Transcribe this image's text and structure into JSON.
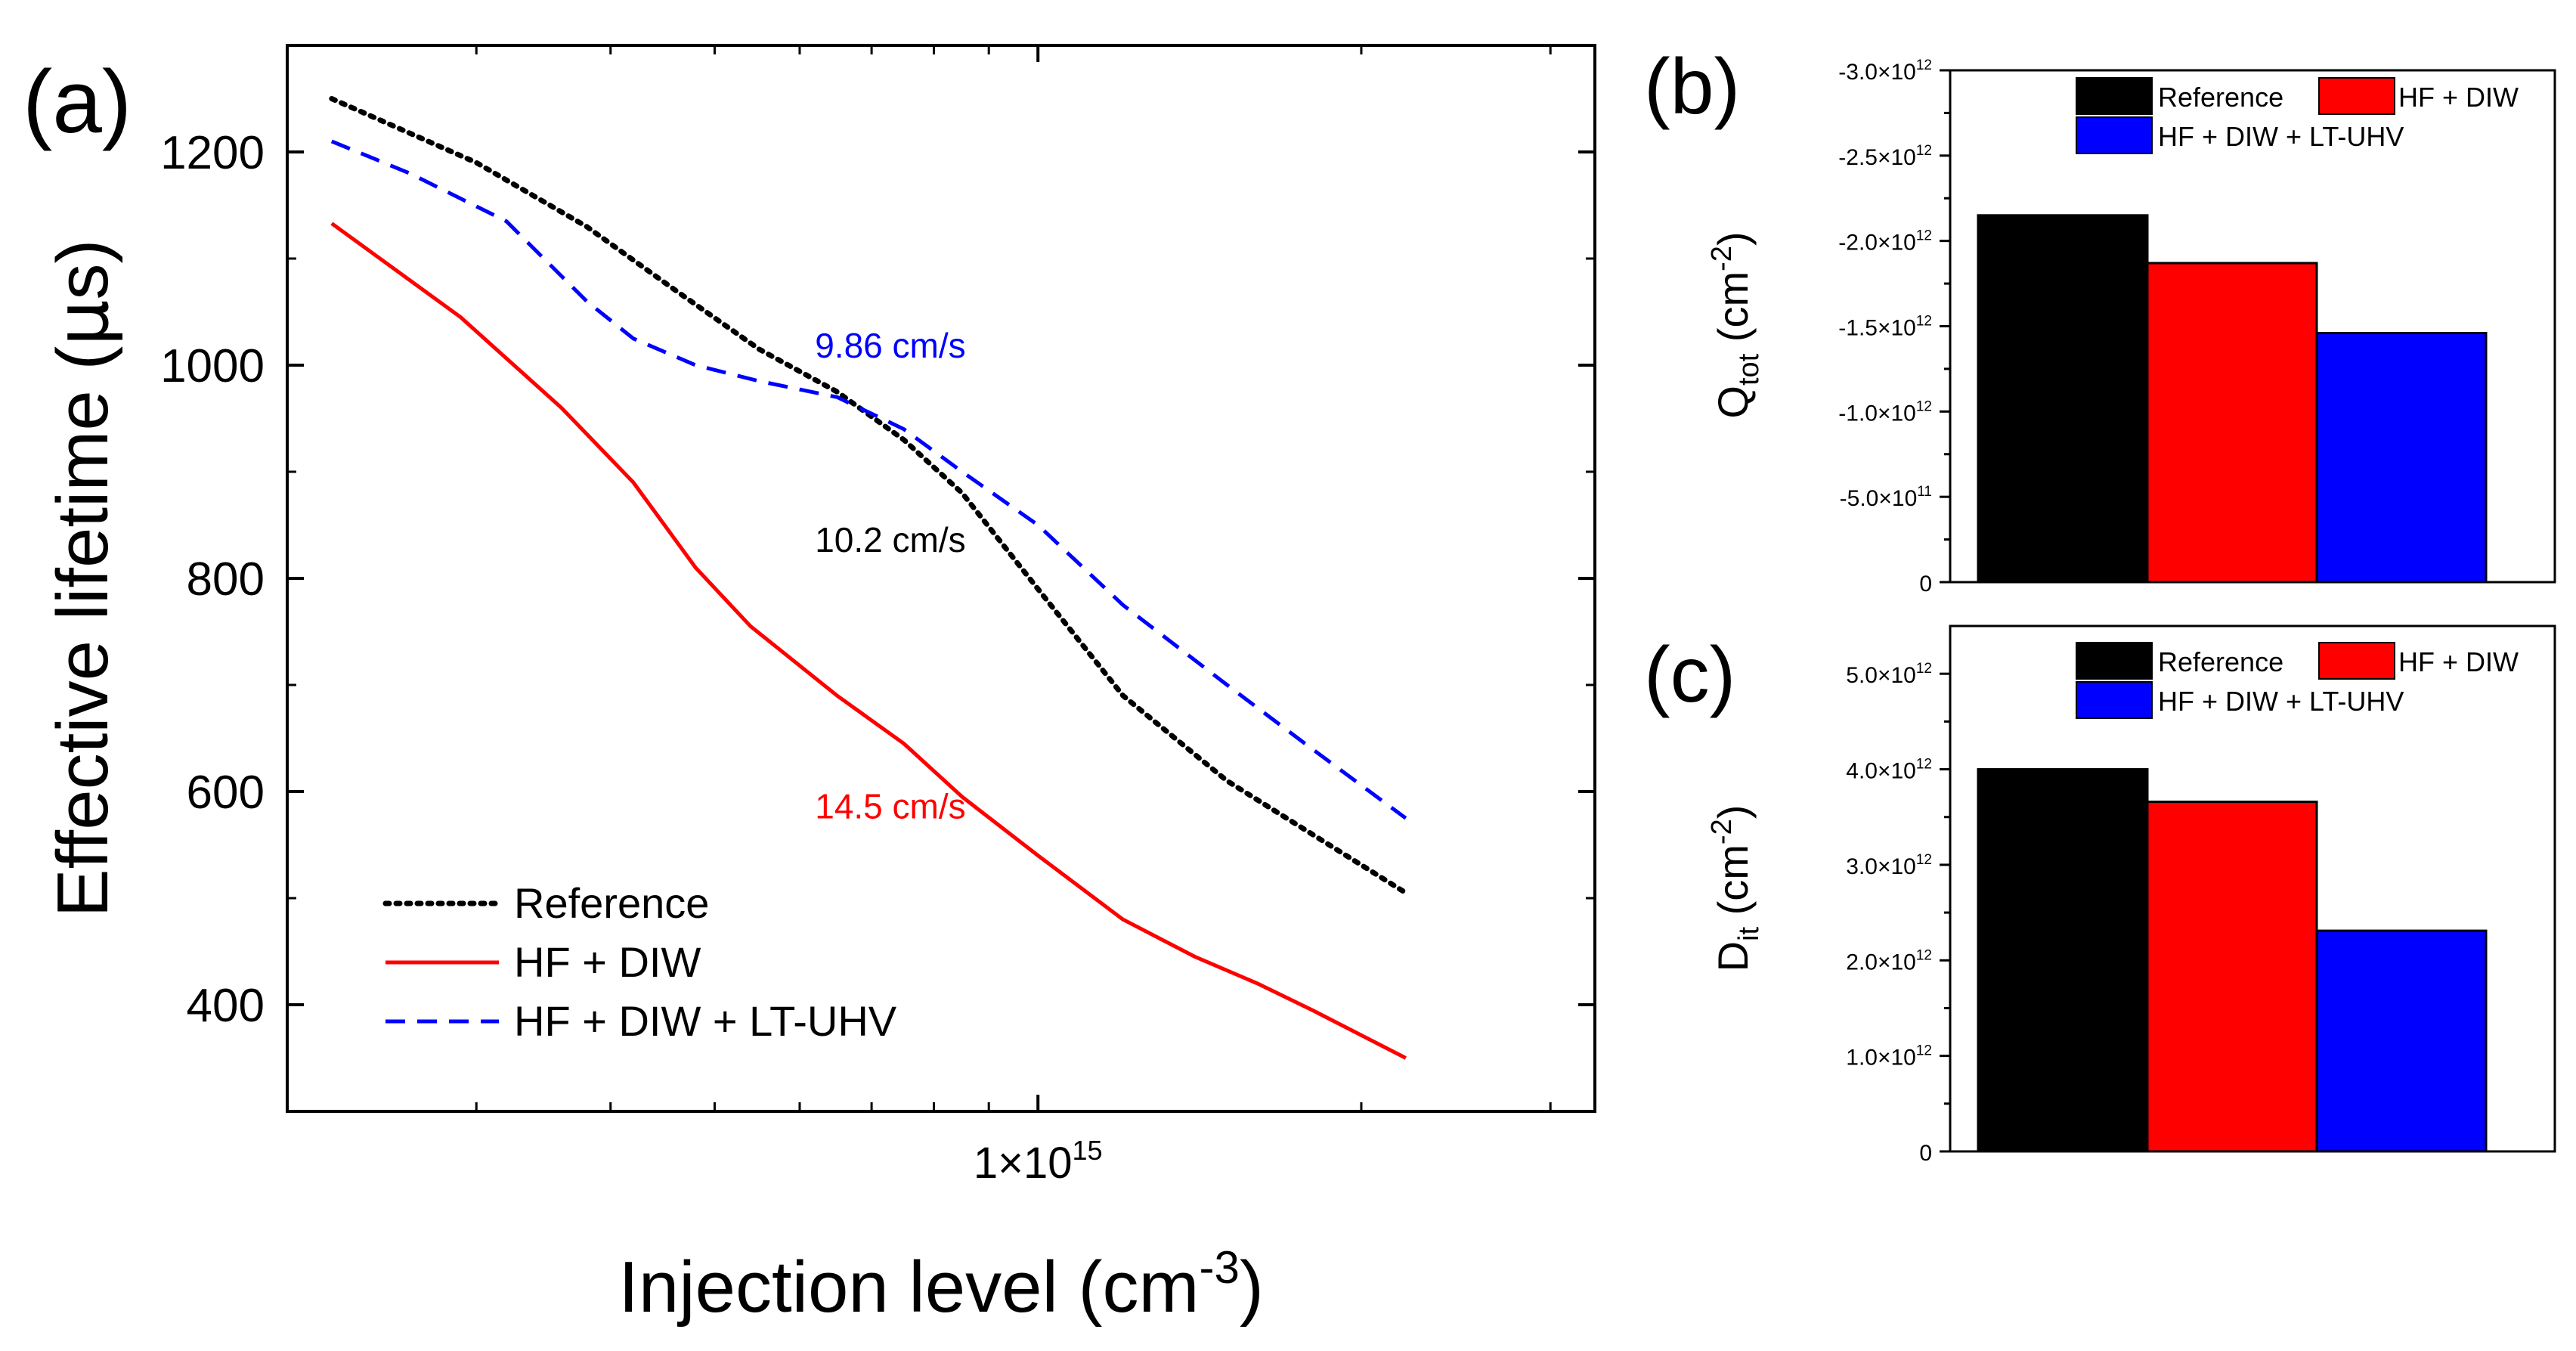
{
  "panels": {
    "a": {
      "label": "(a)"
    },
    "b": {
      "label": "(b)"
    },
    "c": {
      "label": "(c)"
    }
  },
  "chart_data": [
    {
      "id": "a",
      "type": "line",
      "xscale": "log",
      "xlim": [
        200000000000000.0,
        3300000000000000.0
      ],
      "ylim": [
        300,
        1300
      ],
      "xlabel_main": "Injection level (cm",
      "xlabel_sup": "-3",
      "xlabel_end": ")",
      "ylabel_pre": "Effective lifetime (",
      "ylabel_greek": "μ",
      "ylabel_post": "s)",
      "xticks": [
        {
          "value": 1000000000000000.0,
          "mantissa": "1×10",
          "exp": "15"
        }
      ],
      "yticks": [
        {
          "value": 400,
          "label": "400"
        },
        {
          "value": 600,
          "label": "600"
        },
        {
          "value": 800,
          "label": "800"
        },
        {
          "value": 1000,
          "label": "1000"
        },
        {
          "value": 1200,
          "label": "1200"
        }
      ],
      "series": [
        {
          "name": "Reference",
          "color": "#000000",
          "dash": "dotted",
          "x": [
            220000000000000.0,
            300000000000000.0,
            380000000000000.0,
            460000000000000.0,
            550000000000000.0,
            650000000000000.0,
            750000000000000.0,
            850000000000000.0,
            1000000000000000.0,
            1200000000000000.0,
            1500000000000000.0,
            1800000000000000.0,
            2200000000000000.0
          ],
          "y": [
            1250,
            1190,
            1130,
            1070,
            1015,
            975,
            930,
            880,
            790,
            690,
            610,
            560,
            505
          ]
        },
        {
          "name": "HF + DIW",
          "color": "#ff0000",
          "dash": "solid",
          "x": [
            220000000000000.0,
            290000000000000.0,
            360000000000000.0,
            420000000000000.0,
            480000000000000.0,
            540000000000000.0,
            650000000000000.0,
            750000000000000.0,
            850000000000000.0,
            1000000000000000.0,
            1200000000000000.0,
            1400000000000000.0,
            1600000000000000.0,
            1800000000000000.0,
            2200000000000000.0
          ],
          "y": [
            1133,
            1045,
            960,
            890,
            810,
            755,
            690,
            645,
            595,
            540,
            480,
            445,
            420,
            395,
            350
          ]
        },
        {
          "name": "HF + DIW + LT-UHV",
          "color": "#0000ff",
          "dash": "dashed",
          "x": [
            220000000000000.0,
            260000000000000.0,
            320000000000000.0,
            380000000000000.0,
            420000000000000.0,
            480000000000000.0,
            550000000000000.0,
            650000000000000.0,
            750000000000000.0,
            850000000000000.0,
            1000000000000000.0,
            1200000000000000.0,
            1500000000000000.0,
            1800000000000000.0,
            2200000000000000.0
          ],
          "y": [
            1210,
            1180,
            1135,
            1060,
            1025,
            1000,
            985,
            970,
            940,
            900,
            850,
            775,
            700,
            640,
            575
          ]
        }
      ],
      "legend": {
        "position": "bottom-left",
        "entries": [
          "Reference",
          "HF + DIW",
          "HF + DIW + LT-UHV"
        ]
      },
      "annotations": [
        {
          "text": "9.86 cm/s",
          "color": "#0000ff",
          "x": 620000000000000.0,
          "y": 1007
        },
        {
          "text": "10.2 cm/s",
          "color": "#000000",
          "x": 620000000000000.0,
          "y": 825
        },
        {
          "text": "14.5 cm/s",
          "color": "#ff0000",
          "x": 620000000000000.0,
          "y": 575
        }
      ]
    },
    {
      "id": "b",
      "type": "bar",
      "y_reversed": true,
      "ylim": [
        0,
        -3000000000000.0
      ],
      "ylabel_pre": "Q",
      "ylabel_sub": "tot",
      "ylabel_mid": " (cm",
      "ylabel_sup": "-2",
      "ylabel_post": ")",
      "yticks": [
        {
          "value": 0,
          "mantissa": "0",
          "exp": ""
        },
        {
          "value": -500000000000.0,
          "mantissa": "-5.0×10",
          "exp": "11"
        },
        {
          "value": -1000000000000.0,
          "mantissa": "-1.0×10",
          "exp": "12"
        },
        {
          "value": -1500000000000.0,
          "mantissa": "-1.5×10",
          "exp": "12"
        },
        {
          "value": -2000000000000.0,
          "mantissa": "-2.0×10",
          "exp": "12"
        },
        {
          "value": -2500000000000.0,
          "mantissa": "-2.5×10",
          "exp": "12"
        },
        {
          "value": -3000000000000.0,
          "mantissa": "-3.0×10",
          "exp": "12"
        }
      ],
      "categories": [
        "Reference",
        "HF + DIW",
        "HF + DIW + LT-UHV"
      ],
      "values": [
        -2150000000000.0,
        -1870000000000.0,
        -1460000000000.0
      ],
      "colors": [
        "#000000",
        "#ff0000",
        "#0000ff"
      ],
      "legend": {
        "position": "top-right",
        "entries": [
          "Reference",
          "HF + DIW",
          "HF + DIW + LT-UHV"
        ]
      }
    },
    {
      "id": "c",
      "type": "bar",
      "ylim": [
        0,
        5500000000000.0
      ],
      "ylabel_pre": "D",
      "ylabel_sub": "it",
      "ylabel_mid": " (cm",
      "ylabel_sup": "-2",
      "ylabel_post": ")",
      "yticks": [
        {
          "value": 0,
          "mantissa": "0",
          "exp": ""
        },
        {
          "value": 1000000000000.0,
          "mantissa": "1.0×10",
          "exp": "12"
        },
        {
          "value": 2000000000000.0,
          "mantissa": "2.0×10",
          "exp": "12"
        },
        {
          "value": 3000000000000.0,
          "mantissa": "3.0×10",
          "exp": "12"
        },
        {
          "value": 4000000000000.0,
          "mantissa": "4.0×10",
          "exp": "12"
        },
        {
          "value": 5000000000000.0,
          "mantissa": "5.0×10",
          "exp": "12"
        }
      ],
      "categories": [
        "Reference",
        "HF + DIW",
        "HF + DIW + LT-UHV"
      ],
      "values": [
        4000000000000.0,
        3660000000000.0,
        2310000000000.0
      ],
      "colors": [
        "#000000",
        "#ff0000",
        "#0000ff"
      ],
      "legend": {
        "position": "top-right",
        "entries": [
          "Reference",
          "HF + DIW",
          "HF + DIW + LT-UHV"
        ]
      }
    }
  ]
}
